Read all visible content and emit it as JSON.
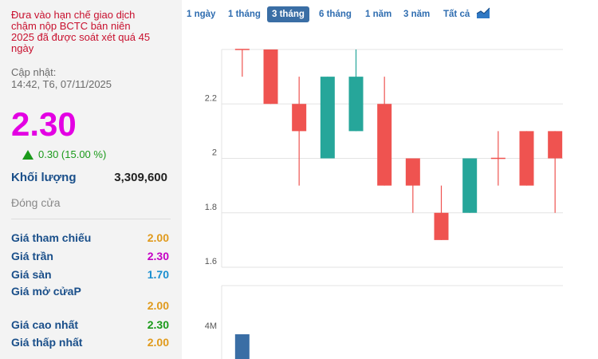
{
  "notice": {
    "line1": "Đưa vào hạn chế giao dịch",
    "line2": "chậm nộp BCTC bán niên",
    "line3": "2025 đã được soát xét quá 45",
    "line4": "ngày"
  },
  "updated": {
    "label": "Cập nhật:",
    "time": "14:42, T6, 07/11/2025"
  },
  "price": "2.30",
  "change": "0.30 (15.00 %)",
  "volume": {
    "label": "Khối lượng",
    "value": "3,309,600"
  },
  "status": "Đóng cửa",
  "stats": [
    {
      "label": "Giá tham chiếu",
      "value": "2.00",
      "color": "#e09a1c"
    },
    {
      "label": "Giá trần",
      "value": "2.30",
      "color": "#c400c4"
    },
    {
      "label": "Giá sàn",
      "value": "1.70",
      "color": "#1a8fd0"
    },
    {
      "label": "Giá mở cửaP",
      "value": "2.00",
      "color": "#e09a1c"
    },
    {
      "label": "Giá cao nhất",
      "value": "2.30",
      "color": "#1a9a1a"
    },
    {
      "label": "Giá thấp nhất",
      "value": "2.00",
      "color": "#e09a1c"
    }
  ],
  "tabs": [
    "1 ngày",
    "1 tháng",
    "3 tháng",
    "6 tháng",
    "1 năm",
    "3 năm",
    "Tất cả"
  ],
  "active_tab": "3 tháng",
  "colors": {
    "up": "#26a69a",
    "down": "#ef5350",
    "accent": "#3a6ea5",
    "price": "#e300e3"
  },
  "icons": {
    "chart_toggle": "area-chart-icon",
    "change": "arrow-up-icon"
  },
  "chart_data": {
    "type": "candlestick",
    "y_ticks": [
      "2.2",
      "2",
      "1.8",
      "1.6"
    ],
    "ylim": [
      1.52,
      2.4
    ],
    "candles": [
      {
        "open": 2.4,
        "close": 2.4,
        "high": 2.4,
        "low": 2.3
      },
      {
        "open": 2.4,
        "close": 2.2,
        "high": 2.4,
        "low": 2.2
      },
      {
        "open": 2.2,
        "close": 2.1,
        "high": 2.3,
        "low": 1.9
      },
      {
        "open": 2.0,
        "close": 2.3,
        "high": 2.3,
        "low": 2.0
      },
      {
        "open": 2.1,
        "close": 2.3,
        "high": 2.4,
        "low": 2.1
      },
      {
        "open": 2.2,
        "close": 1.9,
        "high": 2.3,
        "low": 1.9
      },
      {
        "open": 2.0,
        "close": 1.9,
        "high": 2.0,
        "low": 1.8
      },
      {
        "open": 1.8,
        "close": 1.7,
        "high": 1.9,
        "low": 1.7
      },
      {
        "open": 1.8,
        "close": 2.0,
        "high": 2.0,
        "low": 1.8
      },
      {
        "open": 2.0,
        "close": 2.0,
        "high": 2.1,
        "low": 1.9
      },
      {
        "open": 2.1,
        "close": 1.9,
        "high": 2.1,
        "low": 1.9
      },
      {
        "open": 2.1,
        "close": 2.0,
        "high": 2.1,
        "low": 1.8
      }
    ],
    "volume": {
      "y_ticks": [
        "4M"
      ],
      "values": [
        4.0
      ]
    }
  }
}
